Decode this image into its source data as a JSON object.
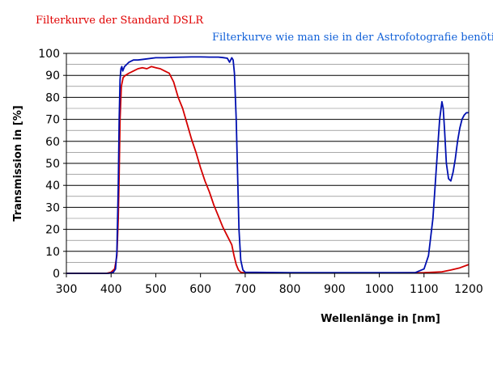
{
  "chart_data": {
    "type": "line",
    "title": "",
    "xlabel": "Wellenlänge in [nm]",
    "ylabel": "Transmission in [%]",
    "xlim": [
      300,
      1200
    ],
    "ylim": [
      0,
      100
    ],
    "x_ticks": [
      "300",
      "400",
      "500",
      "600",
      "700",
      "800",
      "900",
      "1000",
      "1100",
      "1200"
    ],
    "y_ticks": [
      "0",
      "10",
      "20",
      "30",
      "40",
      "50",
      "60",
      "70",
      "80",
      "90",
      "100"
    ],
    "grid": "horizontal",
    "legend": "none",
    "annotations": [
      {
        "text": "Filterkurve der Standard DSLR",
        "color": "#e00000"
      },
      {
        "text": "Filterkurve wie man sie in der Astrofotografie benötigt",
        "color": "#1060d8"
      }
    ],
    "series": [
      {
        "color": "#d40000",
        "x": [
          300,
          390,
          400,
          408,
          413,
          416,
          418,
          420,
          423,
          427,
          432,
          440,
          450,
          460,
          470,
          480,
          490,
          500,
          510,
          520,
          530,
          540,
          550,
          560,
          570,
          580,
          590,
          600,
          610,
          620,
          630,
          640,
          650,
          660,
          670,
          675,
          680,
          685,
          690,
          700,
          800,
          900,
          1000,
          1100,
          1140,
          1160,
          1180,
          1200
        ],
        "y": [
          0,
          0,
          0.5,
          2,
          8,
          25,
          45,
          70,
          85,
          89,
          90,
          91,
          92,
          93,
          93.5,
          93,
          94,
          93.5,
          93,
          92,
          91,
          87,
          80,
          75,
          68,
          61,
          55,
          48,
          42,
          37,
          31,
          26,
          21,
          17,
          13,
          8,
          4,
          1.5,
          0.5,
          0.2,
          0.2,
          0.2,
          0.2,
          0.3,
          0.7,
          1.5,
          2.5,
          4
        ]
      },
      {
        "color": "#0010b0",
        "x": [
          300,
          395,
          405,
          410,
          413,
          416,
          418,
          420,
          422,
          424,
          426,
          430,
          435,
          440,
          450,
          460,
          480,
          500,
          520,
          540,
          560,
          580,
          600,
          620,
          640,
          650,
          660,
          665,
          670,
          673,
          676,
          680,
          683,
          686,
          690,
          695,
          700,
          800,
          900,
          1000,
          1080,
          1100,
          1110,
          1120,
          1130,
          1135,
          1140,
          1143,
          1146,
          1150,
          1155,
          1160,
          1165,
          1170,
          1175,
          1180,
          1185,
          1190,
          1195,
          1200
        ],
        "y": [
          0,
          0,
          0.5,
          2,
          10,
          40,
          70,
          88,
          93,
          94,
          92,
          94,
          95,
          96,
          97,
          97,
          97.5,
          98,
          98,
          98.2,
          98.3,
          98.4,
          98.4,
          98.3,
          98.3,
          98.1,
          97.8,
          96,
          98,
          97,
          91,
          70,
          45,
          20,
          6,
          1.5,
          0.5,
          0.3,
          0.3,
          0.3,
          0.3,
          2,
          8,
          25,
          55,
          70,
          78,
          75,
          65,
          50,
          43,
          42,
          46,
          52,
          60,
          66,
          70,
          72,
          73,
          73
        ]
      }
    ]
  }
}
